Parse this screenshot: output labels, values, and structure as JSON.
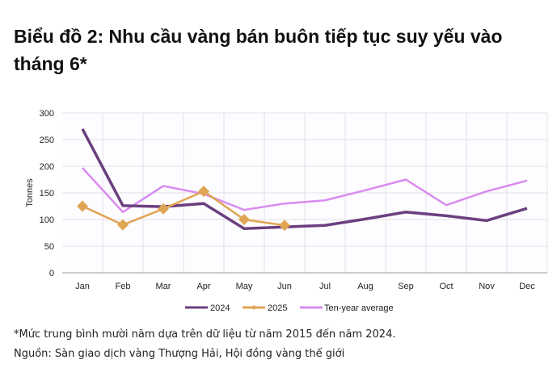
{
  "title": "Biểu đồ 2: Nhu cầu vàng bán buôn tiếp tục suy yếu vào tháng 6*",
  "footnote": {
    "note": "*Mức trung bình mười năm dựa trên dữ liệu từ năm 2015 đến năm 2024.",
    "source": "Nguồn: Sàn giao dịch vàng Thượng Hải, Hội đồng vàng thế giới"
  },
  "chart_data": {
    "type": "line",
    "title": "Biểu đồ 2: Nhu cầu vàng bán buôn tiếp tục suy yếu vào tháng 6*",
    "xlabel": "",
    "ylabel": "Tonnes",
    "ylim": [
      0,
      300
    ],
    "yticks": [
      0,
      50,
      100,
      150,
      200,
      250,
      300
    ],
    "grid": true,
    "legend_position": "bottom",
    "categories": [
      "Jan",
      "Feb",
      "Mar",
      "Apr",
      "May",
      "Jun",
      "Jul",
      "Aug",
      "Sep",
      "Oct",
      "Nov",
      "Dec"
    ],
    "series": [
      {
        "name": "2024",
        "color": "#6b3f7f",
        "marker": "none",
        "values": [
          270,
          126,
          124,
          130,
          83,
          86,
          89,
          101,
          114,
          107,
          98,
          121
        ]
      },
      {
        "name": "2025",
        "color": "#e0a552",
        "marker": "diamond",
        "values": [
          125,
          90,
          120,
          153,
          100,
          89,
          null,
          null,
          null,
          null,
          null,
          null
        ]
      },
      {
        "name": "Ten-year average",
        "color": "#d88bf0",
        "marker": "none",
        "values": [
          197,
          114,
          163,
          148,
          118,
          130,
          136,
          155,
          175,
          127,
          153,
          173
        ]
      }
    ]
  }
}
